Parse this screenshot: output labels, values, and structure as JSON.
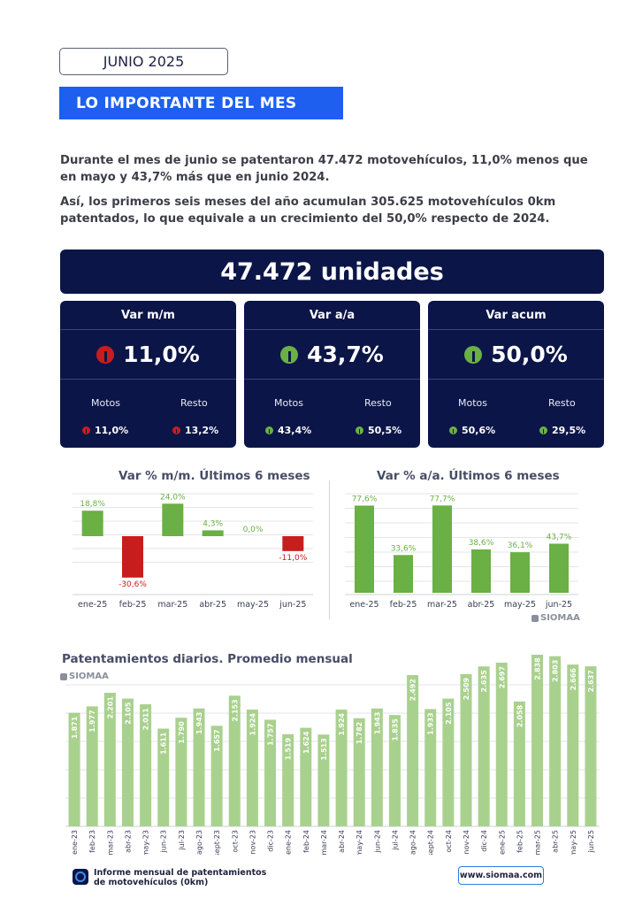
{
  "header": {
    "month": "JUNIO 2025",
    "banner": "LO IMPORTANTE DEL MES"
  },
  "intro": {
    "p1": "Durante el mes de junio se patentaron 47.472 motovehículos, 11,0% menos que en mayo y 43,7% más que en junio 2024.",
    "p2": "Así, los primeros seis meses del año acumulan 305.625 motovehículos 0km patentados, lo que equivale a un crecimiento del 50,0% respecto de 2024."
  },
  "units": "47.472 unidades",
  "cards": [
    {
      "title": "Var m/m",
      "value": "11,0%",
      "direction": "down",
      "motos_label": "Motos",
      "motos_value": "11,0%",
      "motos_dir": "down",
      "resto_label": "Resto",
      "resto_value": "13,2%",
      "resto_dir": "down"
    },
    {
      "title": "Var a/a",
      "value": "43,7%",
      "direction": "up",
      "motos_label": "Motos",
      "motos_value": "43,4%",
      "motos_dir": "up",
      "resto_label": "Resto",
      "resto_value": "50,5%",
      "resto_dir": "up"
    },
    {
      "title": "Var acum",
      "value": "50,0%",
      "direction": "up",
      "motos_label": "Motos",
      "motos_value": "50,6%",
      "motos_dir": "up",
      "resto_label": "Resto",
      "resto_value": "29,5%",
      "resto_dir": "up"
    }
  ],
  "colors": {
    "navy": "#0b1548",
    "blue": "#1e5ff0",
    "green": "#6ab044",
    "red": "#c81d1d",
    "light_green": "#a9d18e"
  },
  "brand": "SIOMAA",
  "chart_data": [
    {
      "type": "bar",
      "title": "Var % m/m. Últimos 6 meses",
      "categories": [
        "ene-25",
        "feb-25",
        "mar-25",
        "abr-25",
        "may-25",
        "jun-25"
      ],
      "values": [
        18.8,
        -30.6,
        24.0,
        4.3,
        0.0,
        -11.0
      ],
      "labels": [
        "18,8%",
        "-30,6%",
        "24,0%",
        "4,3%",
        "0,0%",
        "-11,0%"
      ],
      "ylim": [
        -40,
        30
      ]
    },
    {
      "type": "bar",
      "title": "Var % a/a. Últimos 6 meses",
      "categories": [
        "ene-25",
        "feb-25",
        "mar-25",
        "abr-25",
        "may-25",
        "jun-25"
      ],
      "values": [
        77.6,
        33.6,
        77.7,
        38.6,
        36.1,
        43.7
      ],
      "labels": [
        "77,6%",
        "33,6%",
        "77,7%",
        "38,6%",
        "36,1%",
        "43,7%"
      ],
      "ylim": [
        0,
        90
      ]
    },
    {
      "type": "bar",
      "title": "Patentamientos diarios. Promedio mensual",
      "categories": [
        "ene-23",
        "feb-23",
        "mar-23",
        "abr-23",
        "may-23",
        "jun-23",
        "jul-23",
        "ago-23",
        "sept-23",
        "oct-23",
        "nov-23",
        "dic-23",
        "ene-24",
        "feb-24",
        "mar-24",
        "abr-24",
        "may-24",
        "jun-24",
        "jul-24",
        "ago-24",
        "sept-24",
        "oct-24",
        "nov-24",
        "dic-24",
        "ene-25",
        "feb-25",
        "mar-25",
        "abr-25",
        "may-25",
        "jun-25"
      ],
      "values": [
        1871,
        1977,
        2201,
        2105,
        2011,
        1611,
        1790,
        1943,
        1657,
        2153,
        1924,
        1757,
        1519,
        1624,
        1513,
        1924,
        1782,
        1943,
        1835,
        2492,
        1933,
        2105,
        2509,
        2635,
        2697,
        2058,
        2838,
        2803,
        2666,
        2637
      ],
      "labels": [
        "1.871",
        "1.977",
        "2.201",
        "2.105",
        "2.011",
        "1.611",
        "1.790",
        "1.943",
        "1.657",
        "2.153",
        "1.924",
        "1.757",
        "1.519",
        "1.624",
        "1.513",
        "1.924",
        "1.782",
        "1.943",
        "1.835",
        "2.492",
        "1.933",
        "2.105",
        "2.509",
        "2.635",
        "2.697",
        "2.058",
        "2.838",
        "2.803",
        "2.666",
        "2.637"
      ],
      "ylim": [
        0,
        3000
      ]
    }
  ],
  "footer": {
    "line1": "Informe mensual de patentamientos",
    "line2": "de motovehículos (0km)",
    "web": "www.siomaa.com"
  }
}
